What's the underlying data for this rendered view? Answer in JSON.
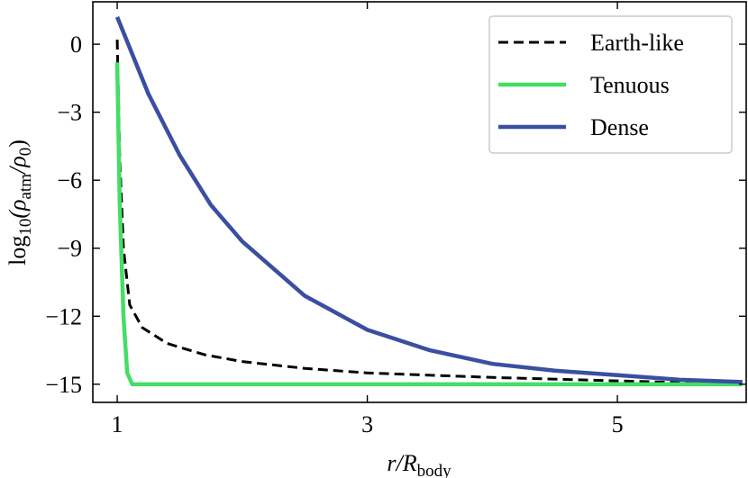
{
  "chart_data": {
    "type": "line",
    "xlabel": {
      "main": "r/R",
      "sub": "body"
    },
    "ylabel": {
      "main": "log",
      "sub1": "10",
      "mid": "(ρ",
      "sub2": "atm",
      "mid2": "/ρ",
      "sub3": "0",
      "end": ")"
    },
    "xlim": [
      0.805,
      6.03
    ],
    "ylim": [
      -15.8,
      1.87
    ],
    "xticks": [
      1,
      3,
      5
    ],
    "yticks": [
      0,
      {
        "value": -3,
        "label": "−3"
      },
      {
        "value": -6,
        "label": "−6"
      },
      {
        "value": -9,
        "label": "−9"
      },
      {
        "value": -12,
        "label": "−12"
      },
      {
        "value": -15,
        "label": "−15"
      }
    ],
    "legend": "upper right",
    "series": [
      {
        "name": "Earth-like",
        "color": "#000000",
        "dash": true,
        "x": [
          1,
          1.02,
          1.05,
          1.1,
          1.2,
          1.4,
          1.7,
          2,
          2.5,
          3,
          4,
          5,
          6
        ],
        "values": [
          0.2,
          -5,
          -9,
          -11.5,
          -12.5,
          -13.2,
          -13.7,
          -14.0,
          -14.3,
          -14.5,
          -14.7,
          -14.85,
          -15.0
        ]
      },
      {
        "name": "Tenuous",
        "color": "#44dd66",
        "dash": false,
        "x": [
          1,
          1.02,
          1.05,
          1.08,
          1.12,
          2,
          6
        ],
        "values": [
          -0.8,
          -7,
          -12,
          -14.5,
          -15,
          -15,
          -15
        ]
      },
      {
        "name": "Dense",
        "color": "#3a4fa0",
        "dash": false,
        "x": [
          1,
          1.25,
          1.5,
          1.75,
          2,
          2.5,
          3,
          3.5,
          4,
          4.5,
          5,
          5.5,
          6
        ],
        "values": [
          1.2,
          -2.2,
          -4.9,
          -7.1,
          -8.7,
          -11.1,
          -12.6,
          -13.5,
          -14.1,
          -14.4,
          -14.6,
          -14.8,
          -14.9
        ]
      }
    ]
  }
}
